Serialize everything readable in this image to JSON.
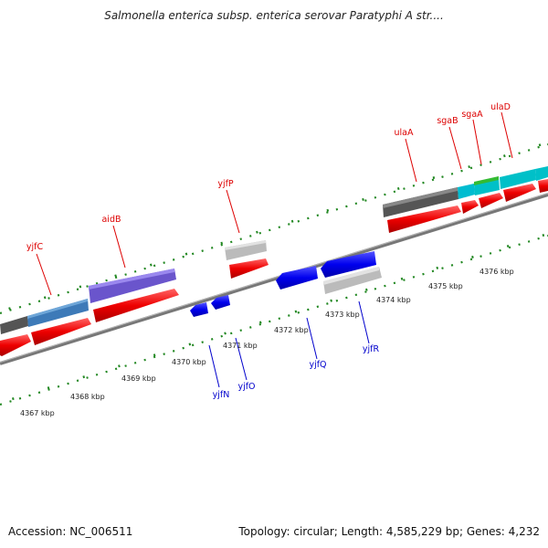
{
  "title": "Salmonella enterica subsp. enterica serovar Paratyphi A str....",
  "footer": {
    "accession": "Accession: NC_006511",
    "summary": "Topology: circular; Length: 4,585,229 bp; Genes: 4,232"
  },
  "scale_labels": [
    "4367 kbp",
    "4368 kbp",
    "4369 kbp",
    "4370 kbp",
    "4371 kbp",
    "4372 kbp",
    "4373 kbp",
    "4374 kbp",
    "4375 kbp",
    "4376 kbp"
  ],
  "gene_labels": [
    {
      "text": "yjfC",
      "color": "#dd0000"
    },
    {
      "text": "aidB",
      "color": "#dd0000"
    },
    {
      "text": "yjfP",
      "color": "#dd0000"
    },
    {
      "text": "ulaA",
      "color": "#dd0000"
    },
    {
      "text": "sgaB",
      "color": "#dd0000"
    },
    {
      "text": "sgaA",
      "color": "#dd0000"
    },
    {
      "text": "ulaD",
      "color": "#dd0000"
    },
    {
      "text": "yjfN",
      "color": "#0000cc"
    },
    {
      "text": "yjfO",
      "color": "#0000cc"
    },
    {
      "text": "yjfQ",
      "color": "#0000cc"
    },
    {
      "text": "yjfR",
      "color": "#0000cc"
    }
  ],
  "colors": {
    "forward_cds": "#ee0000",
    "reverse_cds": "#0000dd",
    "backbone": "#777777",
    "tick": "#228822"
  }
}
